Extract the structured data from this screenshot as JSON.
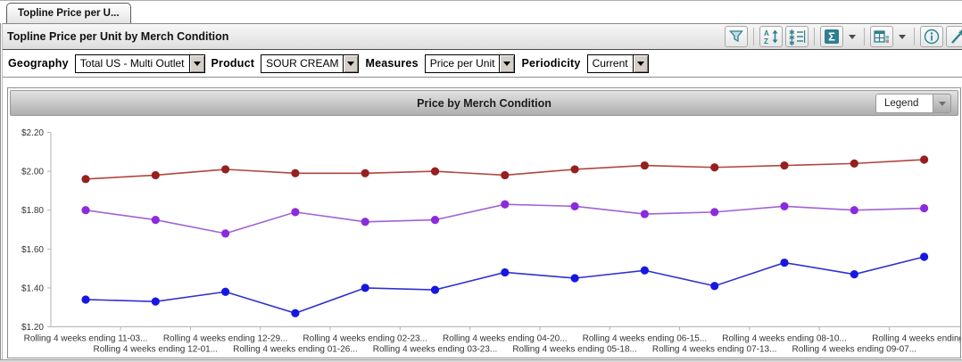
{
  "tab": {
    "label": "Topline Price per U..."
  },
  "header": {
    "title": "Topline Price per Unit by Merch Condition",
    "toolbar_buttons": [
      {
        "name": "filter",
        "icon": "funnel-icon"
      },
      {
        "name": "sort",
        "icon": "sort-az-icon"
      },
      {
        "name": "select-items",
        "icon": "checklist-icon"
      },
      {
        "name": "aggregate",
        "icon": "sigma-icon",
        "has_dropdown": true
      },
      {
        "name": "layout",
        "icon": "grid-layout-icon",
        "has_dropdown": true
      },
      {
        "name": "info",
        "icon": "info-icon"
      },
      {
        "name": "design",
        "icon": "magic-wand-icon"
      }
    ],
    "icon_color": "#2e7f8f"
  },
  "filters": [
    {
      "label": "Geography",
      "value": "Total US - Multi Outlet"
    },
    {
      "label": "Product",
      "value": "SOUR CREAM"
    },
    {
      "label": "Measures",
      "value": "Price per Unit"
    },
    {
      "label": "Periodicity",
      "value": "Current"
    }
  ],
  "chart": {
    "title": "Price by Merch Condition",
    "legend_label": "Legend"
  },
  "chart_data": {
    "type": "line",
    "title": "Price by Merch Condition",
    "x_labels": [
      "Rolling 4 weeks ending 11-03...",
      "Rolling 4 weeks ending 12-01...",
      "Rolling 4 weeks ending 12-29...",
      "Rolling 4 weeks ending 01-26...",
      "Rolling 4 weeks ending 02-23...",
      "Rolling 4 weeks ending 03-23...",
      "Rolling 4 weeks ending 04-20...",
      "Rolling 4 weeks ending 05-18...",
      "Rolling 4 weeks ending 06-15...",
      "Rolling 4 weeks ending 07-13...",
      "Rolling 4 weeks ending 08-10...",
      "Rolling 4 weeks ending 09-07...",
      "Rolling 4 weeks ending 10"
    ],
    "series": [
      {
        "name": "red-series",
        "line_color": "#b2453c",
        "marker_color": "#961f1f",
        "values": [
          1.96,
          1.98,
          2.01,
          1.99,
          1.99,
          2.0,
          1.98,
          2.01,
          2.03,
          2.02,
          2.03,
          2.04,
          2.06
        ]
      },
      {
        "name": "purple-series",
        "line_color": "#a162d6",
        "marker_color": "#8b2bdd",
        "values": [
          1.8,
          1.75,
          1.68,
          1.79,
          1.74,
          1.75,
          1.83,
          1.82,
          1.78,
          1.79,
          1.82,
          1.8,
          1.81
        ]
      },
      {
        "name": "blue-series",
        "line_color": "#3030cf",
        "marker_color": "#1717e3",
        "values": [
          1.34,
          1.33,
          1.38,
          1.27,
          1.4,
          1.39,
          1.48,
          1.45,
          1.49,
          1.41,
          1.53,
          1.47,
          1.56
        ]
      }
    ],
    "ylim": [
      1.2,
      2.2
    ],
    "yticks": [
      {
        "label": "$2.20",
        "value": 2.2
      },
      {
        "label": "$2.00",
        "value": 2.0
      },
      {
        "label": "$1.80",
        "value": 1.8
      },
      {
        "label": "$1.60",
        "value": 1.6
      },
      {
        "label": "$1.40",
        "value": 1.4
      },
      {
        "label": "$1.20",
        "value": 1.2
      }
    ],
    "grid": false,
    "legend_position": "collapsed-dropdown"
  }
}
